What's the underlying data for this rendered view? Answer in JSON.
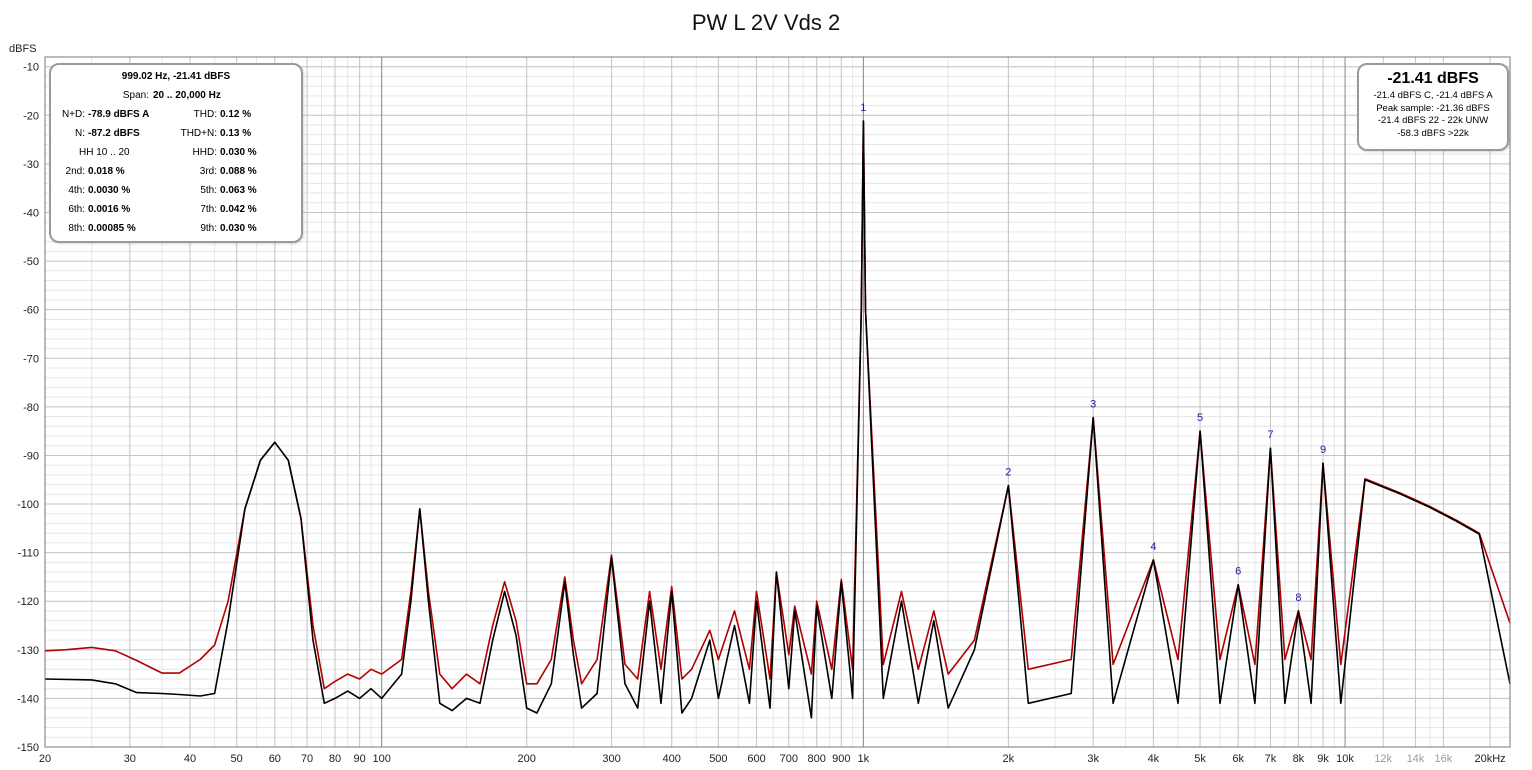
{
  "chart_data": {
    "type": "line",
    "title": "PW L 2V Vds 2",
    "ylabel": "dBFS",
    "xlabel": "",
    "x_scale": "log",
    "xlim": [
      20,
      22000
    ],
    "ylim": [
      -150,
      -8
    ],
    "grid": true,
    "x_ticks": [
      {
        "v": 20,
        "label": "20"
      },
      {
        "v": 30,
        "label": "30"
      },
      {
        "v": 40,
        "label": "40"
      },
      {
        "v": 50,
        "label": "50"
      },
      {
        "v": 60,
        "label": "60"
      },
      {
        "v": 70,
        "label": "70"
      },
      {
        "v": 80,
        "label": "80"
      },
      {
        "v": 90,
        "label": "90"
      },
      {
        "v": 100,
        "label": "100"
      },
      {
        "v": 200,
        "label": "200"
      },
      {
        "v": 300,
        "label": "300"
      },
      {
        "v": 400,
        "label": "400"
      },
      {
        "v": 500,
        "label": "500"
      },
      {
        "v": 600,
        "label": "600"
      },
      {
        "v": 700,
        "label": "700"
      },
      {
        "v": 800,
        "label": "800"
      },
      {
        "v": 900,
        "label": "900"
      },
      {
        "v": 1000,
        "label": "1k"
      },
      {
        "v": 2000,
        "label": "2k"
      },
      {
        "v": 3000,
        "label": "3k"
      },
      {
        "v": 4000,
        "label": "4k"
      },
      {
        "v": 5000,
        "label": "5k"
      },
      {
        "v": 6000,
        "label": "6k"
      },
      {
        "v": 7000,
        "label": "7k"
      },
      {
        "v": 8000,
        "label": "8k"
      },
      {
        "v": 9000,
        "label": "9k"
      },
      {
        "v": 10000,
        "label": "10k"
      },
      {
        "v": 12000,
        "label": "12k",
        "muted": true
      },
      {
        "v": 14000,
        "label": "14k",
        "muted": true
      },
      {
        "v": 16000,
        "label": "16k",
        "muted": true
      },
      {
        "v": 20000,
        "label": "20kHz"
      }
    ],
    "y_ticks": [
      -10,
      -20,
      -30,
      -40,
      -50,
      -60,
      -70,
      -80,
      -90,
      -100,
      -110,
      -120,
      -130,
      -140,
      -150
    ],
    "harmonic_markers": [
      {
        "label": "1",
        "x": 1000,
        "y": -21.2
      },
      {
        "label": "2",
        "x": 2000,
        "y": -96.2
      },
      {
        "label": "3",
        "x": 3000,
        "y": -82.2
      },
      {
        "label": "4",
        "x": 4000,
        "y": -111.5
      },
      {
        "label": "5",
        "x": 5000,
        "y": -85.0
      },
      {
        "label": "6",
        "x": 6000,
        "y": -116.6
      },
      {
        "label": "7",
        "x": 7000,
        "y": -88.5
      },
      {
        "label": "8",
        "x": 8000,
        "y": -122.0
      },
      {
        "label": "9",
        "x": 9000,
        "y": -91.6
      }
    ],
    "series": [
      {
        "color": "#b00000",
        "role": "red trace",
        "points": [
          [
            20,
            -130.2
          ],
          [
            22,
            -130.0
          ],
          [
            25,
            -129.5
          ],
          [
            28,
            -130.2
          ],
          [
            31,
            -132.2
          ],
          [
            35,
            -134.8
          ],
          [
            38,
            -134.8
          ],
          [
            42,
            -132.0
          ],
          [
            45,
            -129.0
          ],
          [
            48,
            -120.0
          ],
          [
            52,
            -101.0
          ],
          [
            56,
            -91.0
          ],
          [
            60,
            -87.3
          ],
          [
            64,
            -91.0
          ],
          [
            68,
            -103.0
          ],
          [
            72,
            -125.0
          ],
          [
            76,
            -138.0
          ],
          [
            80,
            -136.5
          ],
          [
            85,
            -135.0
          ],
          [
            90,
            -136.0
          ],
          [
            95,
            -134.0
          ],
          [
            100,
            -135.0
          ],
          [
            110,
            -132.0
          ],
          [
            115,
            -118.0
          ],
          [
            120,
            -101.0
          ],
          [
            125,
            -118.0
          ],
          [
            132,
            -135.0
          ],
          [
            140,
            -138.0
          ],
          [
            150,
            -135.0
          ],
          [
            160,
            -137.0
          ],
          [
            170,
            -125.0
          ],
          [
            180,
            -116.0
          ],
          [
            190,
            -124.0
          ],
          [
            200,
            -137.0
          ],
          [
            210,
            -137.0
          ],
          [
            225,
            -132.0
          ],
          [
            240,
            -115.0
          ],
          [
            250,
            -128.0
          ],
          [
            260,
            -137.0
          ],
          [
            280,
            -132.0
          ],
          [
            300,
            -110.5
          ],
          [
            320,
            -133.0
          ],
          [
            340,
            -136.0
          ],
          [
            360,
            -118.0
          ],
          [
            380,
            -134.0
          ],
          [
            400,
            -117.0
          ],
          [
            420,
            -136.0
          ],
          [
            440,
            -134.0
          ],
          [
            480,
            -126.0
          ],
          [
            500,
            -132.0
          ],
          [
            540,
            -122.0
          ],
          [
            580,
            -134.0
          ],
          [
            600,
            -118.0
          ],
          [
            640,
            -136.0
          ],
          [
            660,
            -114.0
          ],
          [
            700,
            -131.0
          ],
          [
            720,
            -121.0
          ],
          [
            780,
            -135.0
          ],
          [
            800,
            -120.0
          ],
          [
            860,
            -134.0
          ],
          [
            900,
            -115.5
          ],
          [
            950,
            -134.0
          ],
          [
            990,
            -60.0
          ],
          [
            1000,
            -21.2
          ],
          [
            1010,
            -60.0
          ],
          [
            1100,
            -133.0
          ],
          [
            1200,
            -118.0
          ],
          [
            1300,
            -134.0
          ],
          [
            1400,
            -122.0
          ],
          [
            1500,
            -135.0
          ],
          [
            1700,
            -128.0
          ],
          [
            2000,
            -96.2
          ],
          [
            2200,
            -134.0
          ],
          [
            2700,
            -132.0
          ],
          [
            3000,
            -82.2
          ],
          [
            3300,
            -133.0
          ],
          [
            4000,
            -111.5
          ],
          [
            4500,
            -132.0
          ],
          [
            5000,
            -85.0
          ],
          [
            5500,
            -132.0
          ],
          [
            6000,
            -116.6
          ],
          [
            6500,
            -133.0
          ],
          [
            7000,
            -88.5
          ],
          [
            7500,
            -132.0
          ],
          [
            8000,
            -122.0
          ],
          [
            8500,
            -132.0
          ],
          [
            9000,
            -91.6
          ],
          [
            9800,
            -133.0
          ],
          [
            11000,
            -94.8
          ],
          [
            13000,
            -97.7
          ],
          [
            15000,
            -100.5
          ],
          [
            17000,
            -103.3
          ],
          [
            19000,
            -106.0
          ],
          [
            22000,
            -124.5
          ]
        ]
      },
      {
        "color": "#000000",
        "role": "black trace",
        "points": [
          [
            20,
            -136.0
          ],
          [
            25,
            -136.2
          ],
          [
            28,
            -137.0
          ],
          [
            31,
            -138.8
          ],
          [
            35,
            -139.0
          ],
          [
            38,
            -139.2
          ],
          [
            42,
            -139.5
          ],
          [
            45,
            -139.0
          ],
          [
            48,
            -124.0
          ],
          [
            52,
            -101.0
          ],
          [
            56,
            -91.0
          ],
          [
            60,
            -87.3
          ],
          [
            64,
            -91.0
          ],
          [
            68,
            -103.0
          ],
          [
            72,
            -128.0
          ],
          [
            76,
            -141.0
          ],
          [
            80,
            -140.0
          ],
          [
            85,
            -138.5
          ],
          [
            90,
            -140.0
          ],
          [
            95,
            -138.0
          ],
          [
            100,
            -140.0
          ],
          [
            110,
            -135.0
          ],
          [
            115,
            -120.0
          ],
          [
            120,
            -101.0
          ],
          [
            125,
            -120.0
          ],
          [
            132,
            -141.0
          ],
          [
            140,
            -142.5
          ],
          [
            150,
            -140.0
          ],
          [
            160,
            -141.0
          ],
          [
            170,
            -128.0
          ],
          [
            180,
            -118.0
          ],
          [
            190,
            -127.0
          ],
          [
            200,
            -142.0
          ],
          [
            210,
            -143.0
          ],
          [
            225,
            -137.0
          ],
          [
            240,
            -116.0
          ],
          [
            250,
            -131.0
          ],
          [
            260,
            -142.0
          ],
          [
            280,
            -139.0
          ],
          [
            300,
            -111.0
          ],
          [
            320,
            -137.0
          ],
          [
            340,
            -142.0
          ],
          [
            360,
            -120.0
          ],
          [
            380,
            -141.0
          ],
          [
            400,
            -118.0
          ],
          [
            420,
            -143.0
          ],
          [
            440,
            -140.0
          ],
          [
            480,
            -128.0
          ],
          [
            500,
            -140.0
          ],
          [
            540,
            -125.0
          ],
          [
            580,
            -141.0
          ],
          [
            600,
            -120.0
          ],
          [
            640,
            -142.0
          ],
          [
            660,
            -114.0
          ],
          [
            700,
            -138.0
          ],
          [
            720,
            -122.0
          ],
          [
            780,
            -144.0
          ],
          [
            800,
            -121.0
          ],
          [
            860,
            -140.0
          ],
          [
            900,
            -116.0
          ],
          [
            950,
            -140.0
          ],
          [
            990,
            -60.0
          ],
          [
            1000,
            -21.2
          ],
          [
            1010,
            -60.0
          ],
          [
            1100,
            -140.0
          ],
          [
            1200,
            -120.0
          ],
          [
            1300,
            -141.0
          ],
          [
            1400,
            -124.0
          ],
          [
            1500,
            -142.0
          ],
          [
            1700,
            -130.0
          ],
          [
            2000,
            -96.2
          ],
          [
            2200,
            -141.0
          ],
          [
            2700,
            -139.0
          ],
          [
            3000,
            -82.2
          ],
          [
            3300,
            -141.0
          ],
          [
            4000,
            -111.5
          ],
          [
            4500,
            -141.0
          ],
          [
            5000,
            -85.0
          ],
          [
            5500,
            -141.0
          ],
          [
            6000,
            -116.6
          ],
          [
            6500,
            -141.0
          ],
          [
            7000,
            -88.5
          ],
          [
            7500,
            -141.0
          ],
          [
            8000,
            -122.0
          ],
          [
            8500,
            -141.0
          ],
          [
            9000,
            -91.6
          ],
          [
            9800,
            -141.0
          ],
          [
            11000,
            -95.0
          ],
          [
            13000,
            -97.9
          ],
          [
            15000,
            -100.7
          ],
          [
            17000,
            -103.5
          ],
          [
            19000,
            -106.2
          ],
          [
            22000,
            -137.0
          ]
        ]
      }
    ]
  },
  "stats_box": {
    "header": "999.02 Hz, -21.41 dBFS",
    "span_label": "Span:",
    "span_value": "20 .. 20,000 Hz",
    "hh": "HH 10 .. 20",
    "rows": [
      {
        "l1": "N+D:",
        "v1": "-78.9 dBFS A",
        "l2": "THD:",
        "v2": "0.12 %"
      },
      {
        "l1": "N:",
        "v1": "-87.2 dBFS",
        "l2": "THD+N:",
        "v2": "0.13 %"
      },
      {
        "l1": "",
        "v1": "",
        "l2": "HHD:",
        "v2": "0.030 %"
      },
      {
        "l1": "2nd:",
        "v1": "0.018 %",
        "l2": "3rd:",
        "v2": "0.088 %"
      },
      {
        "l1": "4th:",
        "v1": "0.0030 %",
        "l2": "5th:",
        "v2": "0.063 %"
      },
      {
        "l1": "6th:",
        "v1": "0.0016 %",
        "l2": "7th:",
        "v2": "0.042 %"
      },
      {
        "l1": "8th:",
        "v1": "0.00085 %",
        "l2": "9th:",
        "v2": "0.030 %"
      }
    ]
  },
  "level_box": {
    "main": "-21.41 dBFS",
    "lines": [
      "-21.4 dBFS C, -21.4 dBFS A",
      "Peak sample: -21.36 dBFS",
      "-21.4 dBFS 22 - 22k UNW",
      "-58.3 dBFS >22k"
    ]
  }
}
